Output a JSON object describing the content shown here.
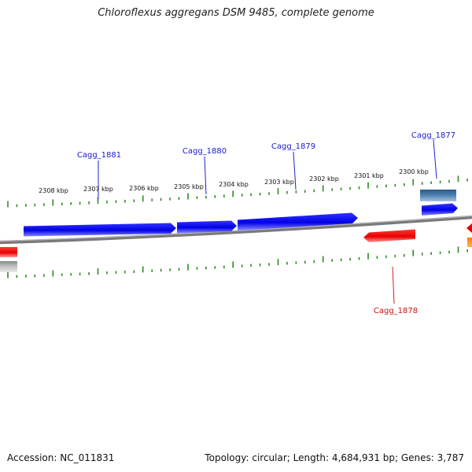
{
  "title": "Chloroflexus aggregans DSM 9485, complete genome",
  "footer": {
    "accession": "Accession: NC_011831",
    "summary": "Topology: circular; Length: 4,684,931 bp; Genes: 3,787"
  },
  "colors": {
    "forward_gene": "#0000ee",
    "reverse_gene": "#ee0000",
    "rna_gene": "#3d6e9a",
    "backbone": "#808080",
    "ticks": "#2e8b22",
    "forward_label": "#1a1acc",
    "reverse_label": "#cc1111",
    "partial_gene": "#ff8800"
  },
  "scale_labels": [
    "2308 kbp",
    "2307 kbp",
    "2306 kbp",
    "2305 kbp",
    "2304 kbp",
    "2303 kbp",
    "2302 kbp",
    "2301 kbp",
    "2300 kbp"
  ],
  "gene_labels": [
    {
      "name": "Cagg_1881",
      "strand": "forward"
    },
    {
      "name": "Cagg_1880",
      "strand": "forward"
    },
    {
      "name": "Cagg_1879",
      "strand": "forward"
    },
    {
      "name": "Cagg_1877",
      "strand": "forward"
    },
    {
      "name": "Cagg_1878",
      "strand": "reverse"
    }
  ]
}
